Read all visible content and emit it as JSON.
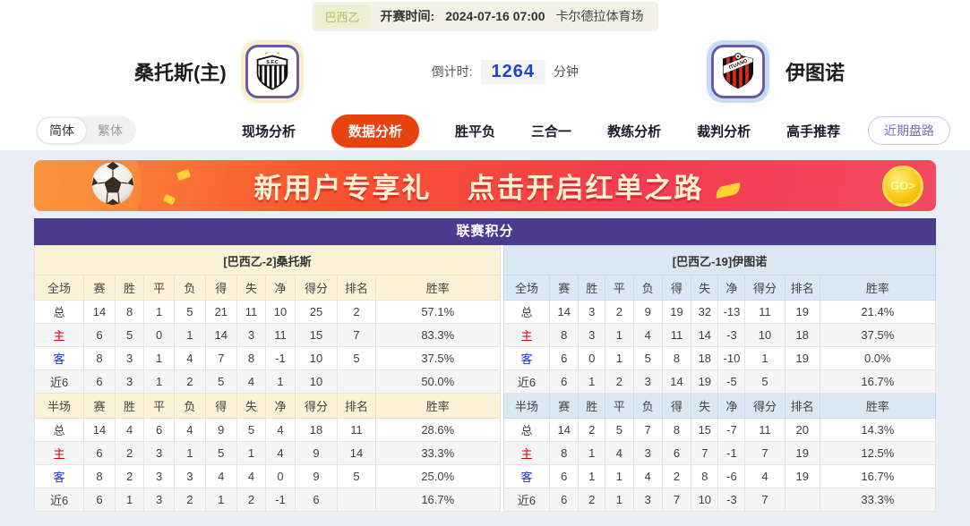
{
  "top_bar": {
    "league_badge": "巴西乙",
    "kickoff_label": "开赛时间:",
    "kickoff_time": "2024-07-16 07:00",
    "venue": "卡尔德拉体育场"
  },
  "match_header": {
    "home_team": "桑托斯(主)",
    "away_team": "伊图诺",
    "home_logo_text": "S.F.C",
    "away_logo_text": "ITUANO",
    "countdown_label": "倒计时:",
    "countdown_value": "1264",
    "countdown_unit": "分钟"
  },
  "nav": {
    "lang_toggle": [
      "简体",
      "繁体"
    ],
    "tabs": [
      {
        "label": "现场分析",
        "active": false
      },
      {
        "label": "数据分析",
        "active": true
      },
      {
        "label": "胜平负",
        "active": false
      },
      {
        "label": "三合一",
        "active": false
      },
      {
        "label": "教练分析",
        "active": false
      },
      {
        "label": "裁判分析",
        "active": false
      },
      {
        "label": "高手推荐",
        "active": false
      }
    ],
    "recent_trend_button": "近期盘路"
  },
  "banner": {
    "line1": "新用户专享礼",
    "line2": "点击开启红单之路",
    "go_label": "GO>"
  },
  "standings": {
    "title": "联赛积分",
    "columns_full": [
      "全场",
      "赛",
      "胜",
      "平",
      "负",
      "得",
      "失",
      "净",
      "得分",
      "排名",
      "胜率"
    ],
    "columns_half": [
      "半场",
      "赛",
      "胜",
      "平",
      "负",
      "得",
      "失",
      "净",
      "得分",
      "排名",
      "胜率"
    ],
    "col_widths": [
      "10.6%",
      "6.7%",
      "6.2%",
      "6.5%",
      "6.7%",
      "6.7%",
      "6.3%",
      "6.2%",
      "9.2%",
      "8.1%",
      "26.8%"
    ],
    "home": {
      "header": "[巴西乙-2]桑托斯",
      "full": [
        {
          "label": "总",
          "cells": [
            "14",
            "8",
            "1",
            "5",
            "21",
            "11",
            "10",
            "25",
            "2",
            "57.1%"
          ]
        },
        {
          "label": "主",
          "cells": [
            "6",
            "5",
            "0",
            "1",
            "14",
            "3",
            "11",
            "15",
            "7",
            "83.3%"
          ]
        },
        {
          "label": "客",
          "cells": [
            "8",
            "3",
            "1",
            "4",
            "7",
            "8",
            "-1",
            "10",
            "5",
            "37.5%"
          ]
        },
        {
          "label": "近6",
          "cells": [
            "6",
            "3",
            "1",
            "2",
            "5",
            "4",
            "1",
            "10",
            "",
            "50.0%"
          ]
        }
      ],
      "half": [
        {
          "label": "总",
          "cells": [
            "14",
            "4",
            "6",
            "4",
            "9",
            "5",
            "4",
            "18",
            "11",
            "28.6%"
          ]
        },
        {
          "label": "主",
          "cells": [
            "6",
            "2",
            "3",
            "1",
            "5",
            "1",
            "4",
            "9",
            "14",
            "33.3%"
          ]
        },
        {
          "label": "客",
          "cells": [
            "8",
            "2",
            "3",
            "3",
            "4",
            "4",
            "0",
            "9",
            "5",
            "25.0%"
          ]
        },
        {
          "label": "近6",
          "cells": [
            "6",
            "1",
            "3",
            "2",
            "1",
            "2",
            "-1",
            "6",
            "",
            "16.7%"
          ]
        }
      ]
    },
    "away": {
      "header": "[巴西乙-19]伊图诺",
      "full": [
        {
          "label": "总",
          "cells": [
            "14",
            "3",
            "2",
            "9",
            "19",
            "32",
            "-13",
            "11",
            "19",
            "21.4%"
          ]
        },
        {
          "label": "主",
          "cells": [
            "8",
            "3",
            "1",
            "4",
            "11",
            "14",
            "-3",
            "10",
            "18",
            "37.5%"
          ]
        },
        {
          "label": "客",
          "cells": [
            "6",
            "0",
            "1",
            "5",
            "8",
            "18",
            "-10",
            "1",
            "19",
            "0.0%"
          ]
        },
        {
          "label": "近6",
          "cells": [
            "6",
            "1",
            "2",
            "3",
            "14",
            "19",
            "-5",
            "5",
            "",
            "16.7%"
          ]
        }
      ],
      "half": [
        {
          "label": "总",
          "cells": [
            "14",
            "2",
            "5",
            "7",
            "8",
            "15",
            "-7",
            "11",
            "20",
            "14.3%"
          ]
        },
        {
          "label": "主",
          "cells": [
            "8",
            "1",
            "4",
            "3",
            "6",
            "7",
            "-1",
            "7",
            "19",
            "12.5%"
          ]
        },
        {
          "label": "客",
          "cells": [
            "6",
            "1",
            "1",
            "4",
            "2",
            "8",
            "-6",
            "4",
            "19",
            "16.7%"
          ]
        },
        {
          "label": "近6",
          "cells": [
            "6",
            "2",
            "1",
            "3",
            "7",
            "10",
            "-3",
            "7",
            "",
            "33.3%"
          ]
        }
      ]
    }
  },
  "colors": {
    "accent_tab": "#e8430f",
    "title_bar_purple": "#4a3b8f",
    "home_header_bg": "#fbf2d8",
    "away_header_bg": "#dbe8f3",
    "countdown_blue": "#1f43cf",
    "banner_gradient_start": "#fb8f3c",
    "banner_gradient_end": "#f24a60",
    "page_bg": "#e9eef6"
  },
  "icons": {
    "home_crest": "santos-crest-icon",
    "away_crest": "ituano-crest-icon",
    "soccer_ball": "soccer-ball-icon",
    "go_coin": "go-coin-icon"
  }
}
